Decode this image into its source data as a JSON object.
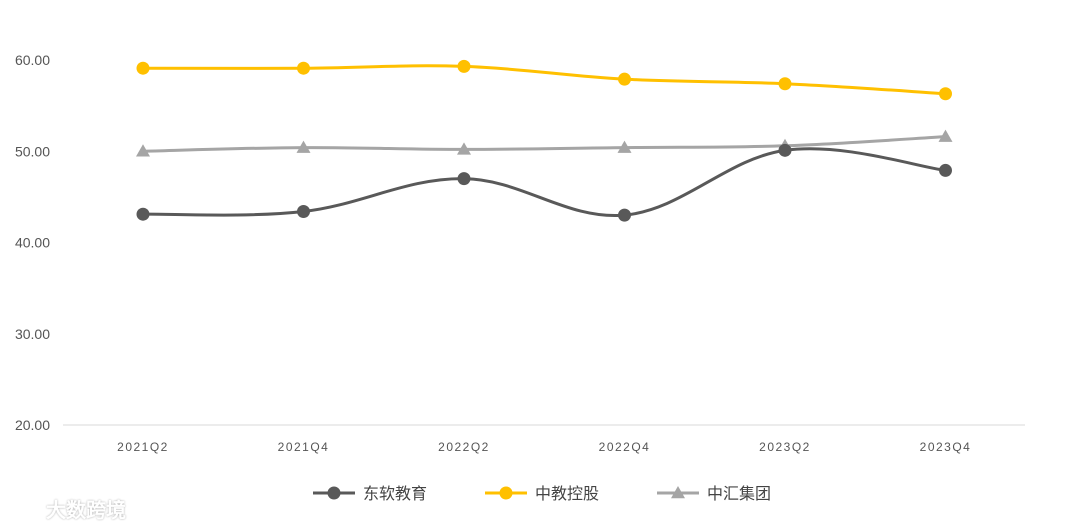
{
  "chart_data": {
    "type": "line",
    "title": "",
    "xlabel": "",
    "ylabel": "",
    "categories": [
      "2021Q2",
      "2021Q4",
      "2022Q2",
      "2022Q4",
      "2023Q2",
      "2023Q4"
    ],
    "ylim": [
      20,
      60
    ],
    "yticks": [
      "20.00",
      "30.00",
      "40.00",
      "50.00",
      "60.00"
    ],
    "grid": false,
    "legend_position": "bottom",
    "series": [
      {
        "name": "东软教育",
        "color": "#595959",
        "marker": "circle",
        "values": [
          43.1,
          43.4,
          47.0,
          43.0,
          50.1,
          47.9
        ]
      },
      {
        "name": "中教控股",
        "color": "#FFC000",
        "marker": "circle",
        "values": [
          59.1,
          59.1,
          59.3,
          57.9,
          57.4,
          56.3
        ]
      },
      {
        "name": "中汇集团",
        "color": "#A5A5A5",
        "marker": "triangle",
        "values": [
          50.0,
          50.4,
          50.2,
          50.4,
          50.6,
          51.6
        ]
      }
    ]
  },
  "watermark": {
    "text": "大数跨境"
  }
}
